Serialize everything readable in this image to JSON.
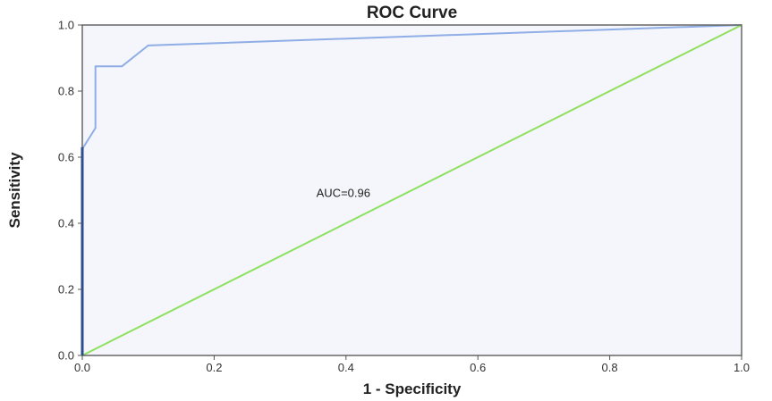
{
  "chart_data": {
    "type": "line",
    "title": "ROC Curve",
    "xlabel": "1 - Specificity",
    "ylabel": "Sensitivity",
    "xlim": [
      0,
      1
    ],
    "ylim": [
      0,
      1
    ],
    "x_ticks": [
      "0.0",
      "0.2",
      "0.4",
      "0.6",
      "0.8",
      "1.0"
    ],
    "y_ticks": [
      "0.0",
      "0.2",
      "0.4",
      "0.6",
      "0.8",
      "1.0"
    ],
    "grid": false,
    "series": [
      {
        "color": "#8faee6",
        "points": [
          [
            0.0,
            0.0
          ],
          [
            0.0,
            0.625
          ],
          [
            0.02,
            0.688
          ],
          [
            0.02,
            0.875
          ],
          [
            0.06,
            0.875
          ],
          [
            0.1,
            0.938
          ],
          [
            1.0,
            1.0
          ]
        ]
      },
      {
        "color": "#8fe060",
        "points": [
          [
            0.0,
            0.0
          ],
          [
            1.0,
            1.0
          ]
        ]
      }
    ],
    "annotation": {
      "text": "AUC=0.96",
      "x": 0.355,
      "y": 0.48
    },
    "colors": {
      "plot_background": "#f4f6fb",
      "frame": "#666666",
      "y_axis_edge": "#2e4d8c"
    }
  }
}
